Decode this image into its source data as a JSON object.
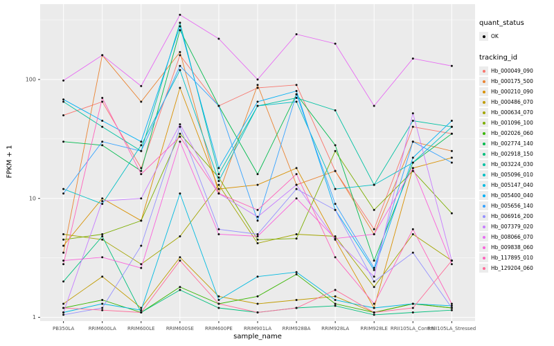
{
  "legend": {
    "quant_status_title": "quant_status",
    "quant_status_value": "OK",
    "quant_status_marker_color": "#000000",
    "tracking_id_title": "tracking_id"
  },
  "panel": {
    "background": "#EBEBEB",
    "gridline_color": "#FFFFFF",
    "tick_label_color": "#4D4D4D",
    "point_color": "#111111"
  },
  "chart_data": {
    "type": "line",
    "title": "",
    "xlabel": "sample_name",
    "ylabel": "FPKM + 1",
    "y_scale": "log10",
    "y_ticks": [
      1,
      10,
      100
    ],
    "ylim": [
      0.93,
      430
    ],
    "legend_position": "right",
    "grid": true,
    "categories": [
      "PB350LA",
      "RRIM600LA",
      "RRIM600LE",
      "RRIM600SE",
      "RRIM600PE",
      "RRIM901LA",
      "RRIM928BA",
      "RRIM928LA",
      "RRIM928LE",
      "RRII105LA_Control",
      "RRII105LA_Stressed"
    ],
    "series": [
      {
        "name": "Hb_000049_090",
        "color": "#F8766D",
        "values": [
          50,
          65,
          18,
          160,
          60,
          85,
          90,
          17,
          5.5,
          40,
          35
        ]
      },
      {
        "name": "Hb_000175_500",
        "color": "#EA8331",
        "values": [
          3.5,
          160,
          65,
          170,
          11,
          90,
          13,
          17,
          5,
          30,
          25
        ]
      },
      {
        "name": "Hb_000210_090",
        "color": "#D89000",
        "values": [
          4,
          10,
          6.5,
          85,
          12,
          13,
          18,
          4.5,
          1.2,
          18,
          22
        ]
      },
      {
        "name": "Hb_000486_070",
        "color": "#C09B00",
        "values": [
          1.3,
          2.2,
          1.2,
          3.2,
          1.5,
          1.3,
          1.4,
          1.5,
          1.1,
          1.3,
          1.2
        ]
      },
      {
        "name": "Hb_000634_070",
        "color": "#A3A500",
        "values": [
          5,
          4.5,
          2.8,
          4.8,
          13,
          4.2,
          5,
          4.8,
          1.8,
          5,
          3
        ]
      },
      {
        "name": "Hb_001096_100",
        "color": "#7CAE00",
        "values": [
          4.5,
          5,
          6.5,
          35,
          15,
          4.5,
          4.6,
          25,
          8,
          17,
          7.5
        ]
      },
      {
        "name": "Hb_002026_060",
        "color": "#39B600",
        "values": [
          1.2,
          1.4,
          1.1,
          1.8,
          1.3,
          1.5,
          2.3,
          1.3,
          1.1,
          1.3,
          1.2
        ]
      },
      {
        "name": "Hb_002774_140",
        "color": "#00BB4E",
        "values": [
          30,
          28,
          17,
          260,
          60,
          16,
          75,
          28,
          3,
          20,
          35
        ]
      },
      {
        "name": "Hb_002918_150",
        "color": "#00BF7D",
        "values": [
          2,
          4.8,
          1.1,
          1.7,
          1.2,
          1.1,
          1.2,
          1.25,
          1.05,
          1.1,
          1.15
        ]
      },
      {
        "name": "Hb_003224_030",
        "color": "#00C1A3",
        "values": [
          65,
          40,
          25,
          300,
          16,
          60,
          70,
          55,
          13,
          45,
          40
        ]
      },
      {
        "name": "Hb_005096_010",
        "color": "#00BFC4",
        "values": [
          12,
          9,
          28,
          120,
          14,
          60,
          65,
          12,
          13,
          20,
          40
        ]
      },
      {
        "name": "Hb_005147_040",
        "color": "#00BAE0",
        "values": [
          1.1,
          1.3,
          1.15,
          11,
          1.4,
          2.2,
          2.4,
          1.4,
          1.2,
          1.3,
          1.25
        ]
      },
      {
        "name": "Hb_005400_040",
        "color": "#00B0F6",
        "values": [
          68,
          45,
          30,
          280,
          18,
          65,
          80,
          8,
          2.5,
          22,
          45
        ]
      },
      {
        "name": "Hb_005656_140",
        "color": "#35A2FF",
        "values": [
          11,
          30,
          25,
          130,
          60,
          6.5,
          75,
          9,
          2.6,
          30,
          20
        ]
      },
      {
        "name": "Hb_006916_200",
        "color": "#9590FF",
        "values": [
          1.05,
          1.2,
          4,
          40,
          5.5,
          5,
          12,
          8,
          2,
          3.5,
          1.2
        ]
      },
      {
        "name": "Hb_007379_020",
        "color": "#C77CFF",
        "values": [
          1.1,
          9.5,
          10,
          42,
          11,
          7,
          13,
          4.5,
          2.2,
          52,
          3
        ]
      },
      {
        "name": "Hb_008066_070",
        "color": "#E76BF3",
        "values": [
          98,
          160,
          88,
          350,
          220,
          100,
          240,
          200,
          60,
          150,
          130
        ]
      },
      {
        "name": "Hb_009838_060",
        "color": "#FA62DB",
        "values": [
          3,
          3.2,
          2.6,
          30,
          5,
          4.8,
          10,
          4.6,
          5,
          18,
          2.8
        ]
      },
      {
        "name": "Hb_117895_010",
        "color": "#FF62BC",
        "values": [
          2.8,
          70,
          16,
          33,
          11,
          8,
          16,
          3.2,
          1.3,
          5.5,
          1.3
        ]
      },
      {
        "name": "Hb_129204_060",
        "color": "#FF6A98",
        "values": [
          1.2,
          1.15,
          1.1,
          3,
          1.3,
          1.1,
          1.2,
          1.7,
          1.1,
          1.2,
          3
        ]
      }
    ]
  }
}
